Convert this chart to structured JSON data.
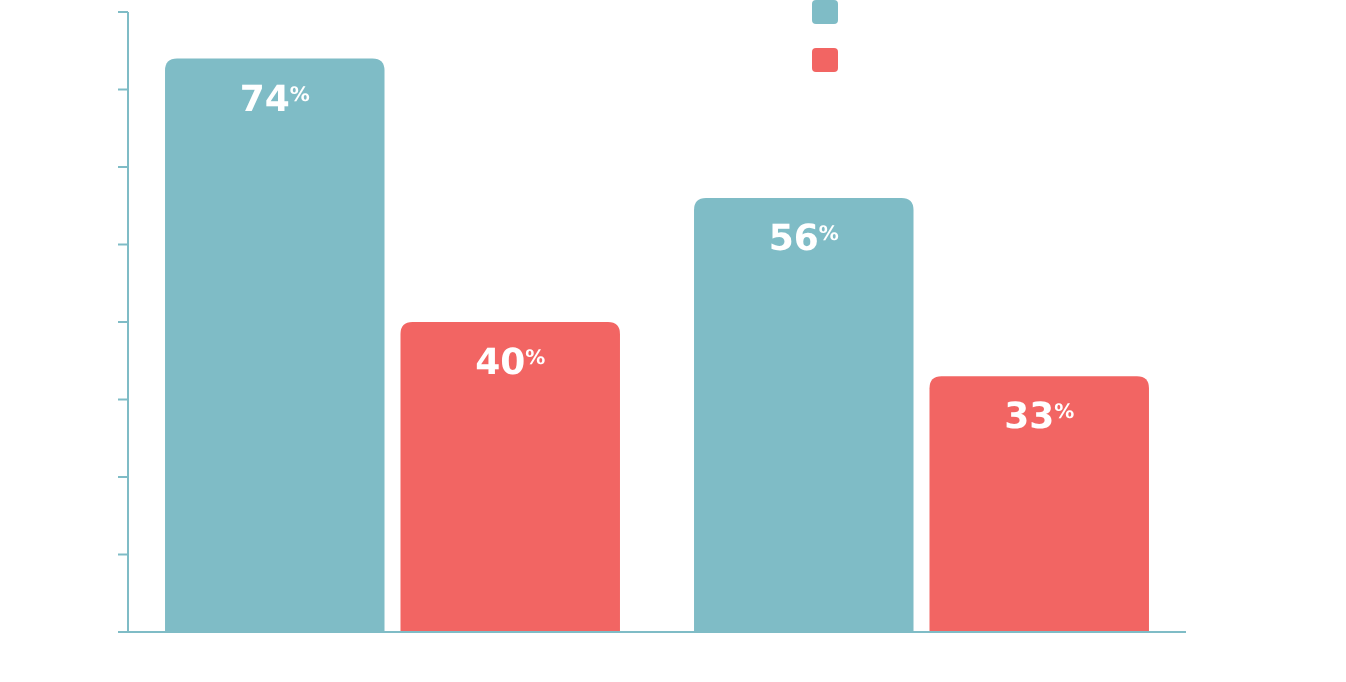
{
  "chart_data": {
    "type": "bar",
    "categories": [
      null,
      null
    ],
    "series": [
      {
        "color": "#7fbcc6",
        "values": [
          74,
          56
        ],
        "value_labels": [
          "74$^{%}$",
          "56$^{%}$"
        ]
      },
      {
        "color": "#f26563",
        "values": [
          40,
          33
        ],
        "value_labels": [
          "40$^{%}$",
          "33$^{%}$"
        ]
      }
    ],
    "ylim": [
      0,
      80
    ],
    "yticks": [
      {
        "value": 0,
        "label": null
      },
      {
        "value": 10,
        "label": null
      },
      {
        "value": 20,
        "label": null
      },
      {
        "value": 30,
        "label": null
      },
      {
        "value": 40,
        "label": null
      },
      {
        "value": 50,
        "label": null
      },
      {
        "value": 60,
        "label": null
      },
      {
        "value": 70,
        "label": null
      },
      {
        "value": 80,
        "label": null
      }
    ],
    "grid": false
  }
}
